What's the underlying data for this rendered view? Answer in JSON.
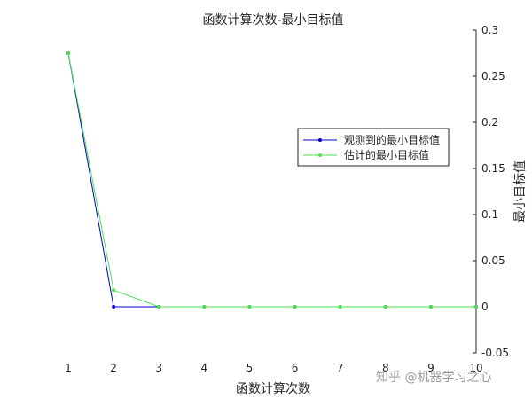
{
  "chart_data": {
    "type": "line",
    "title": "函数计算次数-最小目标值",
    "xlabel": "函数计算次数",
    "ylabel": "最小目标值",
    "xlim": [
      1,
      10
    ],
    "ylim": [
      -0.05,
      0.3
    ],
    "y_axis_side": "right",
    "grid": false,
    "xticks": [
      1,
      2,
      3,
      4,
      5,
      6,
      7,
      8,
      9,
      10
    ],
    "yticks": [
      -0.05,
      0,
      0.05,
      0.1,
      0.15,
      0.2,
      0.25,
      0.3
    ],
    "ytick_labels": [
      "-0.05",
      "0",
      "0.05",
      "0.1",
      "0.15",
      "0.2",
      "0.25",
      "0.3"
    ],
    "legend_position": "right",
    "series": [
      {
        "name": "观测到的最小目标值",
        "color": "#0000cc",
        "x": [
          1,
          2,
          3,
          4,
          5,
          6,
          7,
          8,
          9,
          10
        ],
        "y": [
          0.275,
          0.0,
          0.0,
          0.0,
          0.0,
          0.0,
          0.0,
          0.0,
          0.0,
          0.0
        ]
      },
      {
        "name": "估计的最小目标值",
        "color": "#4ee04e",
        "x": [
          1,
          2,
          3,
          4,
          5,
          6,
          7,
          8,
          9,
          10
        ],
        "y": [
          0.275,
          0.018,
          0.0,
          0.0,
          0.0,
          0.0,
          0.0,
          0.0,
          0.0,
          0.0
        ]
      }
    ]
  },
  "watermark": "知乎 @机器学习之心"
}
